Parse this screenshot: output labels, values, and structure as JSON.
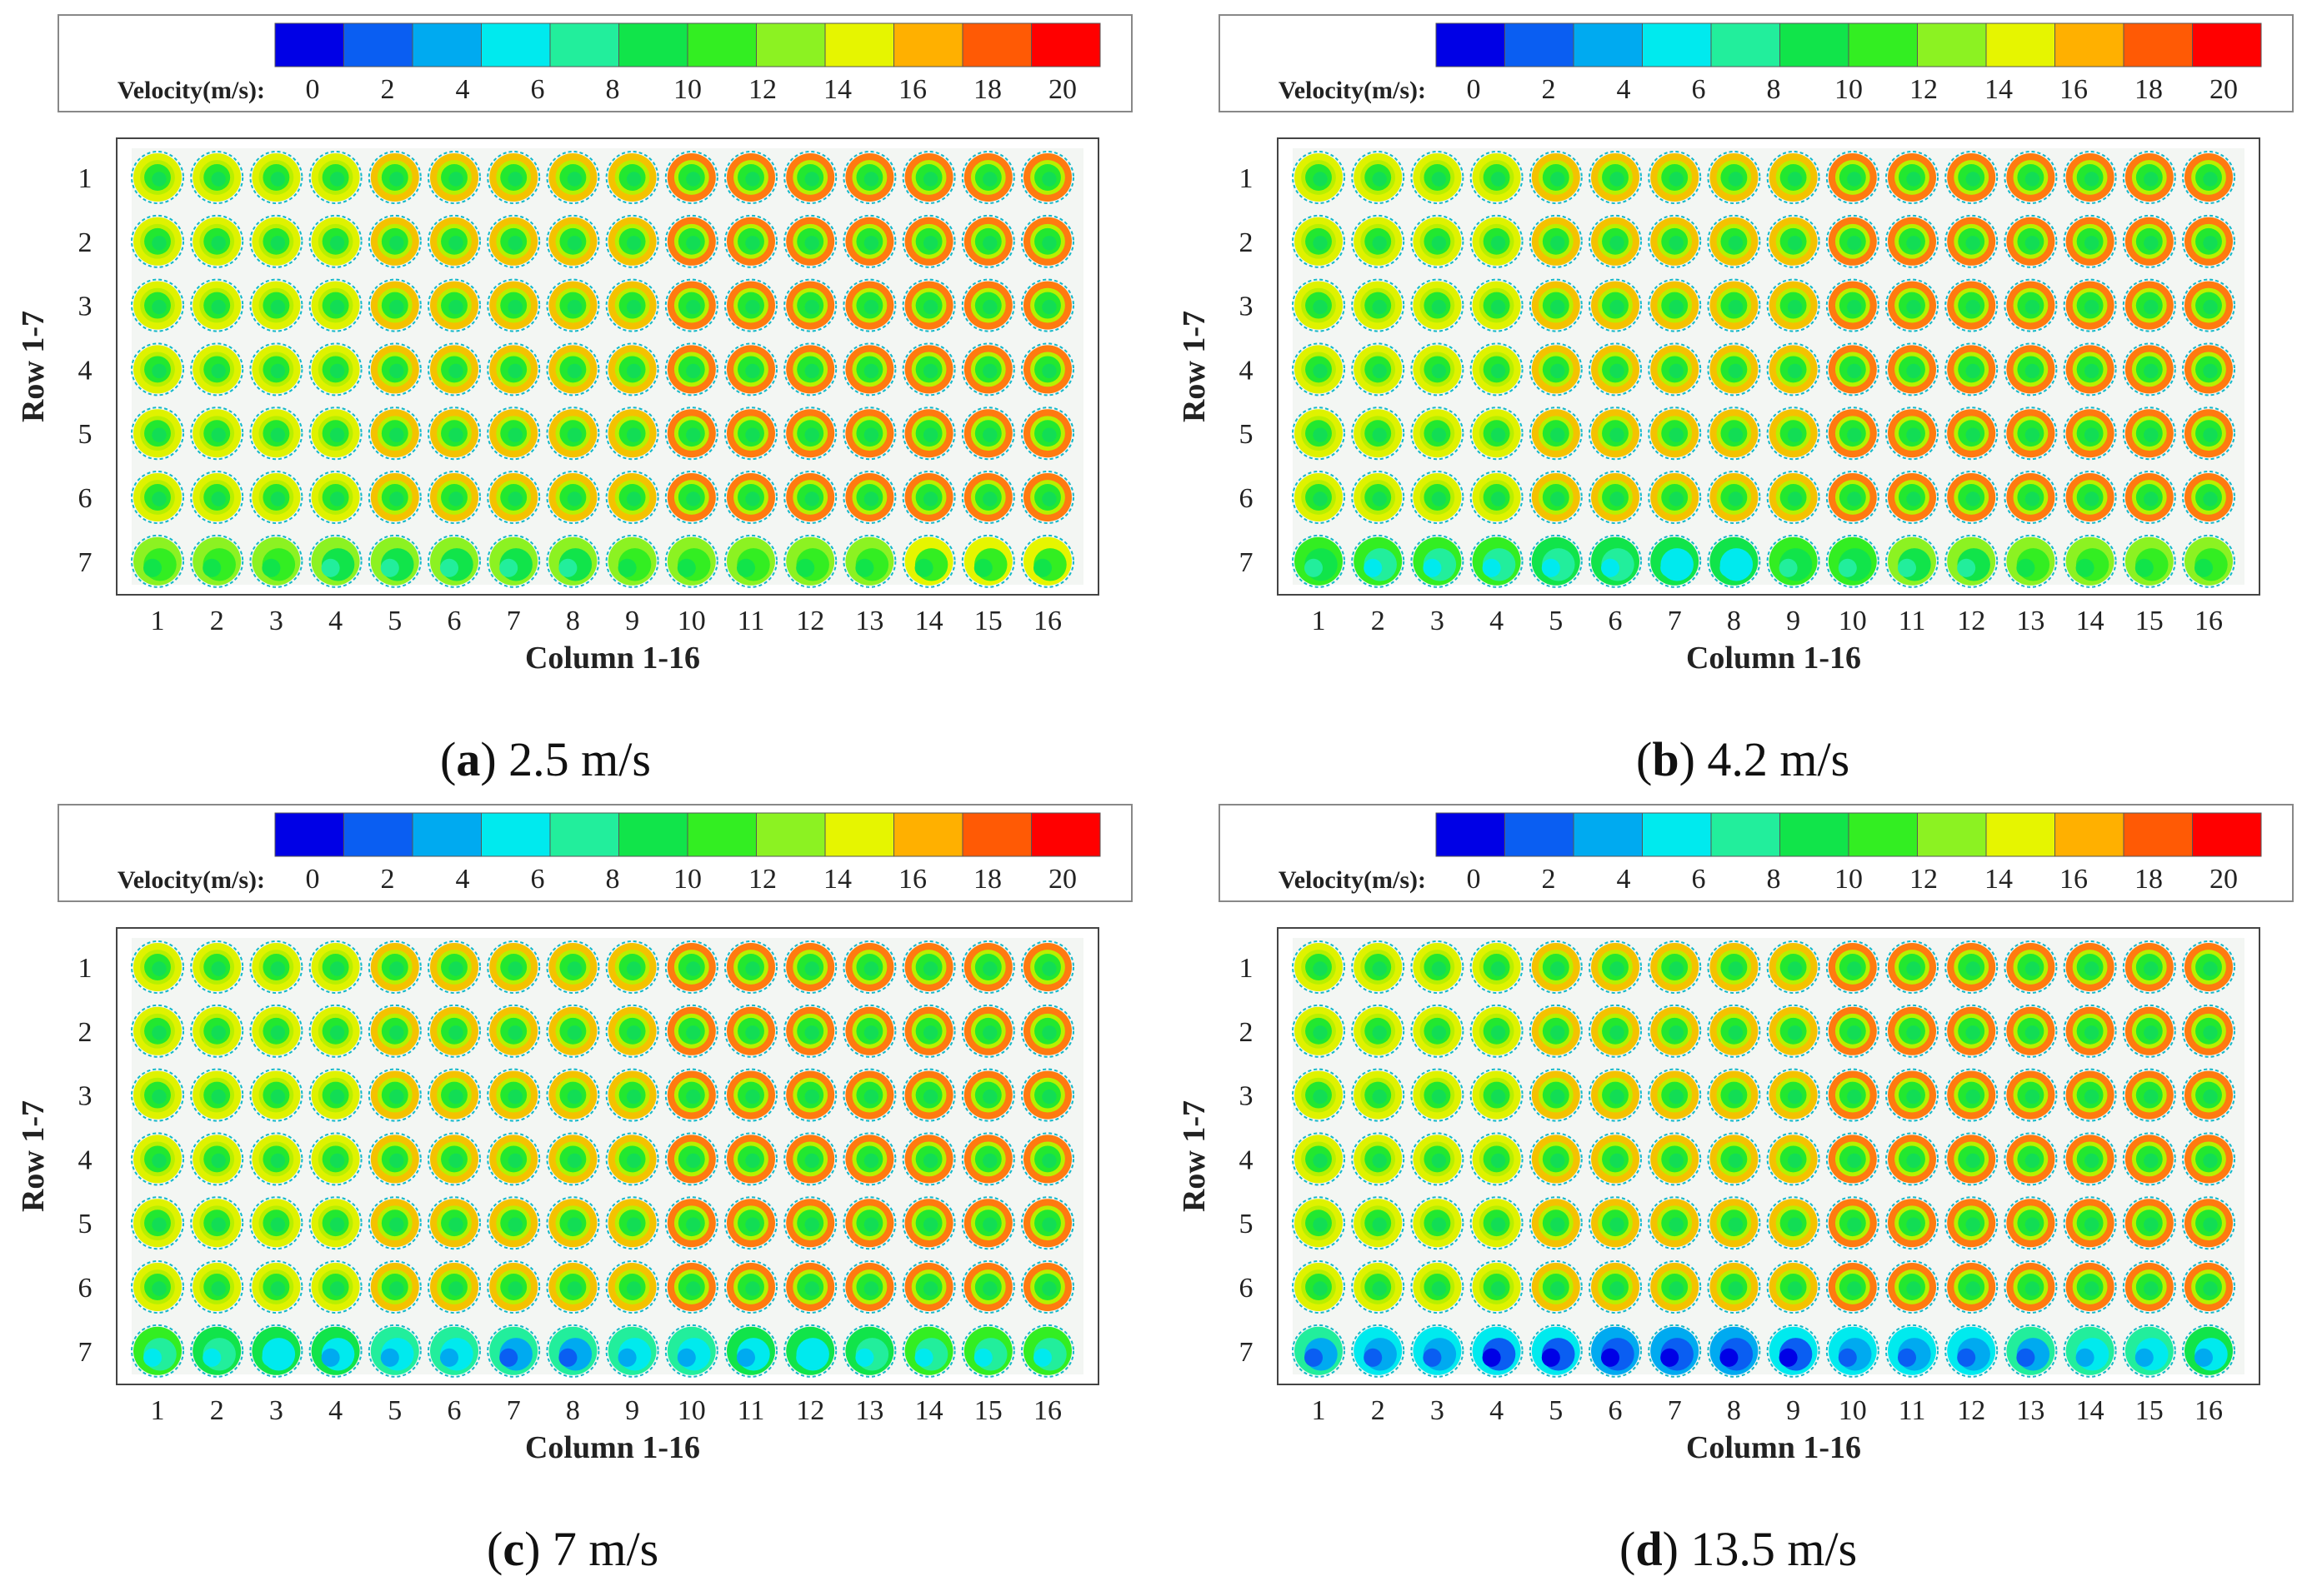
{
  "chart_data": [
    {
      "type": "heatmap",
      "panel_letter": "a",
      "speed_text": "2.5 m/s",
      "xlabel": "Column 1-16",
      "ylabel": "Row 1-7",
      "rows": [
        1,
        2,
        3,
        4,
        5,
        6,
        7
      ],
      "columns": [
        1,
        2,
        3,
        4,
        5,
        6,
        7,
        8,
        9,
        10,
        11,
        12,
        13,
        14,
        15,
        16
      ],
      "row7_core_velocity": [
        9,
        8.5,
        8.5,
        8,
        8,
        8,
        8,
        8,
        8.5,
        8.5,
        9,
        9,
        9,
        9.5,
        9.5,
        9.5
      ]
    },
    {
      "type": "heatmap",
      "panel_letter": "b",
      "speed_text": "4.2 m/s",
      "xlabel": "Column 1-16",
      "ylabel": "Row 1-7",
      "rows": [
        1,
        2,
        3,
        4,
        5,
        6,
        7
      ],
      "columns": [
        1,
        2,
        3,
        4,
        5,
        6,
        7,
        8,
        9,
        10,
        11,
        12,
        13,
        14,
        15,
        16
      ],
      "row7_core_velocity": [
        7,
        6.5,
        6,
        6,
        5.5,
        5.5,
        5,
        5,
        7,
        7.5,
        8,
        8,
        8.5,
        8.5,
        9,
        9
      ]
    },
    {
      "type": "heatmap",
      "panel_letter": "c",
      "speed_text": "7 m/s",
      "xlabel": "Column 1-16",
      "ylabel": "Row 1-7",
      "rows": [
        1,
        2,
        3,
        4,
        5,
        6,
        7
      ],
      "columns": [
        1,
        2,
        3,
        4,
        5,
        6,
        7,
        8,
        9,
        10,
        11,
        12,
        13,
        14,
        15,
        16
      ],
      "row7_core_velocity": [
        6.5,
        5.5,
        5,
        4.5,
        4,
        3.5,
        3,
        3,
        4,
        4,
        4.5,
        5,
        5.5,
        6,
        6.5,
        6
      ]
    },
    {
      "type": "heatmap",
      "panel_letter": "d",
      "speed_text": "13.5 m/s",
      "xlabel": "Column 1-16",
      "ylabel": "Row 1-7",
      "rows": [
        1,
        2,
        3,
        4,
        5,
        6,
        7
      ],
      "columns": [
        1,
        2,
        3,
        4,
        5,
        6,
        7,
        8,
        9,
        10,
        11,
        12,
        13,
        14,
        15,
        16
      ],
      "row7_core_velocity": [
        3,
        2.5,
        2,
        1.5,
        1,
        0.8,
        0.5,
        0.5,
        1.5,
        2,
        2,
        2.5,
        3,
        3.5,
        4,
        4.5
      ]
    }
  ],
  "legend": {
    "label": "Velocity(m/s):",
    "ticks": [
      "0",
      "2",
      "4",
      "6",
      "8",
      "10",
      "12",
      "14",
      "16",
      "18",
      "20"
    ],
    "colors": [
      "#0000e6",
      "#0a5ef2",
      "#00aaf0",
      "#00eaee",
      "#22ee9c",
      "#11e44a",
      "#33ee22",
      "#8cf222",
      "#e6f500",
      "#ffb000",
      "#ff5a05",
      "#ff0000"
    ]
  }
}
